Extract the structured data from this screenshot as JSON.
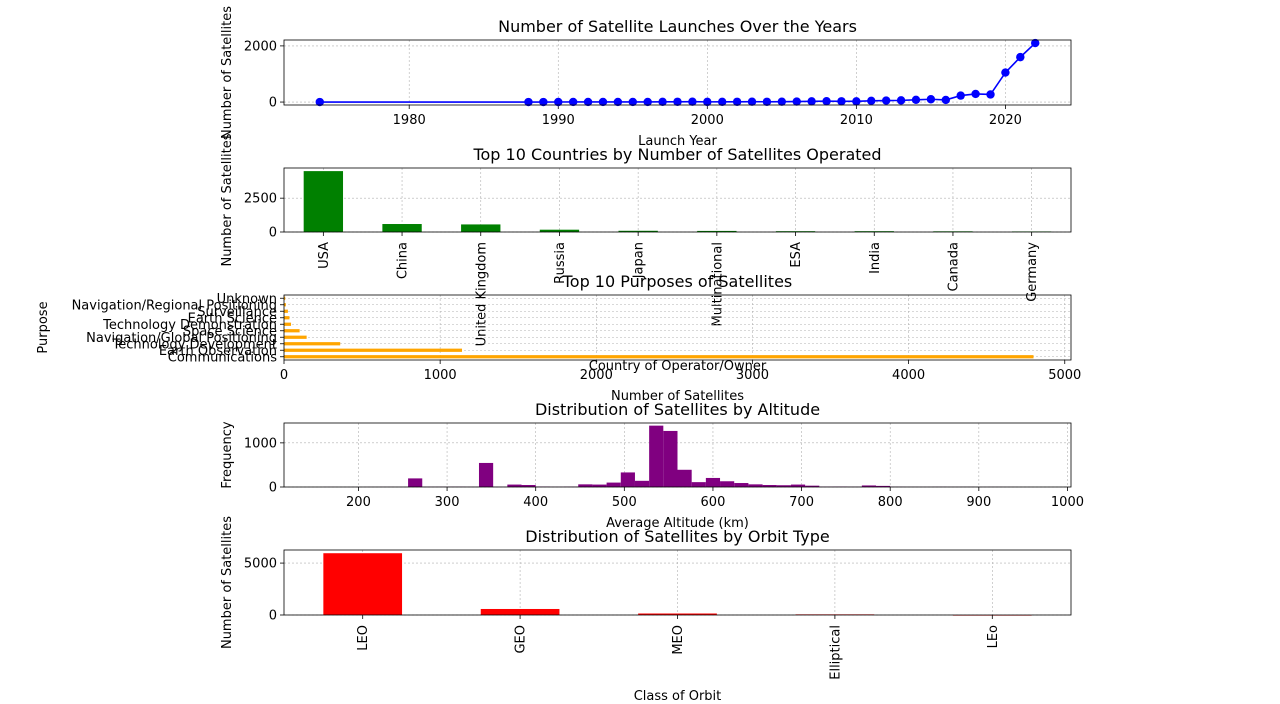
{
  "colors": {
    "line": "#0000ff",
    "countries": "#008000",
    "purposes": "#ffa500",
    "altitude": "#800080",
    "orbit": "#ff0000",
    "grid": "#b0b0b0"
  },
  "chart_data": [
    {
      "id": "launches",
      "type": "line",
      "title": "Number of Satellite Launches Over the Years",
      "xlabel": "Launch Year",
      "ylabel": "Number of Satellites",
      "xlim": [
        1971.6,
        2024.4
      ],
      "ylim": [
        -105,
        2210
      ],
      "xticks": [
        1980,
        1990,
        2000,
        2010,
        2020
      ],
      "yticks": [
        0,
        2000
      ],
      "grid": true,
      "x": [
        1974,
        1988,
        1989,
        1990,
        1991,
        1992,
        1993,
        1994,
        1995,
        1996,
        1997,
        1998,
        1999,
        2000,
        2001,
        2002,
        2003,
        2004,
        2005,
        2006,
        2007,
        2008,
        2009,
        2010,
        2011,
        2012,
        2013,
        2014,
        2015,
        2016,
        2017,
        2018,
        2019,
        2020,
        2021,
        2022
      ],
      "y": [
        1,
        1,
        1,
        2,
        3,
        3,
        3,
        3,
        4,
        4,
        8,
        10,
        12,
        6,
        8,
        10,
        12,
        10,
        14,
        18,
        26,
        30,
        28,
        25,
        45,
        52,
        60,
        80,
        100,
        75,
        230,
        290,
        270,
        1050,
        1600,
        2100
      ]
    },
    {
      "id": "countries",
      "type": "bar",
      "title": "Top 10 Countries by Number of Satellites Operated",
      "xlabel": "Country of Operator/Owner",
      "ylabel": "Number of Satellites",
      "ylim": [
        0,
        4730
      ],
      "yticks": [
        0,
        2500
      ],
      "grid": true,
      "categories": [
        "USA",
        "China",
        "United Kingdom",
        "Russia",
        "Japan",
        "Multinational",
        "ESA",
        "India",
        "Canada",
        "Germany"
      ],
      "values": [
        4500,
        590,
        560,
        170,
        90,
        80,
        60,
        60,
        50,
        40
      ]
    },
    {
      "id": "purposes",
      "type": "barh",
      "title": "Top 10 Purposes of Satellites",
      "xlabel": "Number of Satellites",
      "ylabel": "Purpose",
      "xlim": [
        0,
        5040
      ],
      "xticks": [
        0,
        1000,
        2000,
        3000,
        4000,
        5000
      ],
      "grid": true,
      "categories": [
        "Communications",
        "Earth Observation",
        "Technology Development",
        "Navigation/Global Positioning",
        "Space Science",
        "Technology Demonstration",
        "Earth Science",
        "Surveillance",
        "Navigation/Regional Positioning",
        "Unknown"
      ],
      "values": [
        4800,
        1140,
        360,
        145,
        100,
        45,
        35,
        25,
        12,
        8
      ]
    },
    {
      "id": "altitude",
      "type": "histogram",
      "title": "Distribution of Satellites by Altitude",
      "xlabel": "Average Altitude (km)",
      "ylabel": "Frequency",
      "xlim": [
        116,
        1004
      ],
      "ylim": [
        0,
        1450
      ],
      "xticks": [
        200,
        300,
        400,
        500,
        600,
        700,
        800,
        900,
        1000
      ],
      "yticks": [
        0,
        1000
      ],
      "grid": true,
      "bins": [
        160,
        176,
        192,
        208,
        224,
        240,
        256,
        272,
        288,
        304,
        320,
        336,
        352,
        368,
        384,
        400,
        416,
        432,
        448,
        464,
        480,
        496,
        512,
        528,
        544,
        560,
        576,
        592,
        608,
        624,
        640,
        656,
        672,
        688,
        704,
        720,
        736,
        752,
        768,
        784,
        800,
        816,
        832,
        848,
        864,
        880,
        896,
        912,
        928,
        944,
        960
      ],
      "counts": [
        2,
        1,
        1,
        2,
        3,
        2,
        195,
        5,
        6,
        7,
        5,
        545,
        4,
        55,
        45,
        10,
        5,
        8,
        60,
        55,
        100,
        330,
        140,
        1390,
        1270,
        390,
        110,
        205,
        130,
        90,
        60,
        45,
        40,
        55,
        30,
        8,
        10,
        6,
        35,
        25,
        6,
        4,
        3,
        5,
        3,
        4,
        2,
        3,
        2,
        1
      ]
    },
    {
      "id": "orbit",
      "type": "bar",
      "title": "Distribution of Satellites by Orbit Type",
      "xlabel": "Class of Orbit",
      "ylabel": "Number of Satellites",
      "ylim": [
        0,
        6260
      ],
      "yticks": [
        0,
        5000
      ],
      "grid": true,
      "categories": [
        "LEO",
        "GEO",
        "MEO",
        "Elliptical",
        "LEo"
      ],
      "values": [
        5950,
        580,
        145,
        60,
        1
      ]
    }
  ]
}
